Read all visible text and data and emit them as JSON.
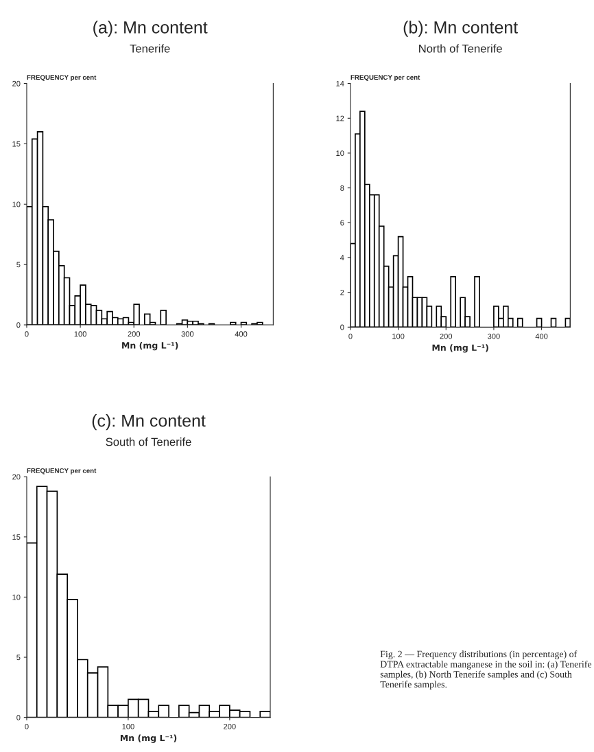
{
  "chart_data": [
    {
      "type": "histogram",
      "title": "(a): Mn content",
      "subtitle": "Tenerife",
      "ylabel": "FREQUENCY per cent",
      "xlabel": "Mn (mg L⁻¹)",
      "bins": [
        0,
        10,
        20,
        30,
        40,
        50,
        60,
        70,
        80,
        90,
        100,
        110,
        120,
        130,
        140,
        150,
        160,
        170,
        180,
        190,
        200,
        210,
        220,
        230,
        240,
        250,
        260,
        270,
        280,
        290,
        300,
        310,
        320,
        330,
        340,
        350,
        360,
        370,
        380,
        390,
        400,
        410,
        420,
        430,
        440
      ],
      "values": [
        9.8,
        15.4,
        16.0,
        9.8,
        8.7,
        6.1,
        4.9,
        3.9,
        1.6,
        2.4,
        3.3,
        1.7,
        1.6,
        1.2,
        0.5,
        1.1,
        0.6,
        0.5,
        0.6,
        0.2,
        1.7,
        0,
        0.9,
        0.2,
        0,
        1.2,
        0,
        0,
        0.1,
        0.4,
        0.3,
        0.3,
        0.1,
        0,
        0.1,
        0,
        0,
        0,
        0.2,
        0,
        0.2,
        0,
        0.1,
        0.2
      ],
      "color": "#ffffff",
      "xlim": [
        0,
        460
      ],
      "xticks": [
        0,
        100,
        200,
        300,
        400
      ],
      "ylim": [
        0,
        20
      ],
      "yticks": [
        0,
        5,
        10,
        15,
        20
      ],
      "grid": false
    },
    {
      "type": "histogram",
      "title": "(b): Mn content",
      "subtitle": "North of Tenerife",
      "ylabel": "FREQUENCY per cent",
      "xlabel": "Mn (mg L⁻¹)",
      "bins": [
        0,
        10,
        20,
        30,
        40,
        50,
        60,
        70,
        80,
        90,
        100,
        110,
        120,
        130,
        140,
        150,
        160,
        170,
        180,
        190,
        200,
        210,
        220,
        230,
        240,
        250,
        260,
        270,
        280,
        290,
        300,
        310,
        320,
        330,
        340,
        350,
        360,
        370,
        380,
        390,
        400,
        410,
        420,
        430,
        440,
        450,
        460
      ],
      "values": [
        4.8,
        11.1,
        12.4,
        8.2,
        7.6,
        7.6,
        5.8,
        3.5,
        2.3,
        4.1,
        5.2,
        2.3,
        2.9,
        1.7,
        1.7,
        1.7,
        1.2,
        0,
        1.2,
        0.6,
        0,
        2.9,
        0,
        1.7,
        0.6,
        0,
        2.9,
        0,
        0,
        0,
        1.2,
        0.5,
        1.2,
        0.5,
        0,
        0.5,
        0,
        0,
        0,
        0.5,
        0,
        0,
        0.5,
        0,
        0,
        0.5
      ],
      "color": "#ffffff",
      "xlim": [
        0,
        460
      ],
      "xticks": [
        0,
        100,
        200,
        300,
        400
      ],
      "ylim": [
        0,
        14
      ],
      "yticks": [
        0,
        2,
        4,
        6,
        8,
        10,
        12,
        14
      ],
      "grid": false
    },
    {
      "type": "histogram",
      "title": "(c): Mn content",
      "subtitle": "South of Tenerife",
      "ylabel": "FREQUENCY per cent",
      "xlabel": "Mn (mg L⁻¹)",
      "bins": [
        0,
        10,
        20,
        30,
        40,
        50,
        60,
        70,
        80,
        90,
        100,
        110,
        120,
        130,
        140,
        150,
        160,
        170,
        180,
        190,
        200,
        210,
        220,
        230,
        240
      ],
      "values": [
        14.5,
        19.2,
        18.8,
        11.9,
        9.8,
        4.8,
        3.7,
        4.2,
        1.0,
        1.0,
        1.5,
        1.5,
        0.5,
        1.0,
        0,
        1.0,
        0.4,
        1.0,
        0.5,
        1.0,
        0.6,
        0.5,
        0,
        0.5
      ],
      "color": "#ffffff",
      "xlim": [
        0,
        240
      ],
      "xticks": [
        0,
        100,
        200
      ],
      "ylim": [
        0,
        20
      ],
      "yticks": [
        0,
        5,
        10,
        15,
        20
      ],
      "grid": false,
      "annotations": [
        "Fig. 2 — Frequency distributions (in percentage) of DTPA extractable manganese in the soil in: (a) Tenerife samples, (b) North Tenerife samples and (c) South Tenerife samples."
      ]
    }
  ]
}
